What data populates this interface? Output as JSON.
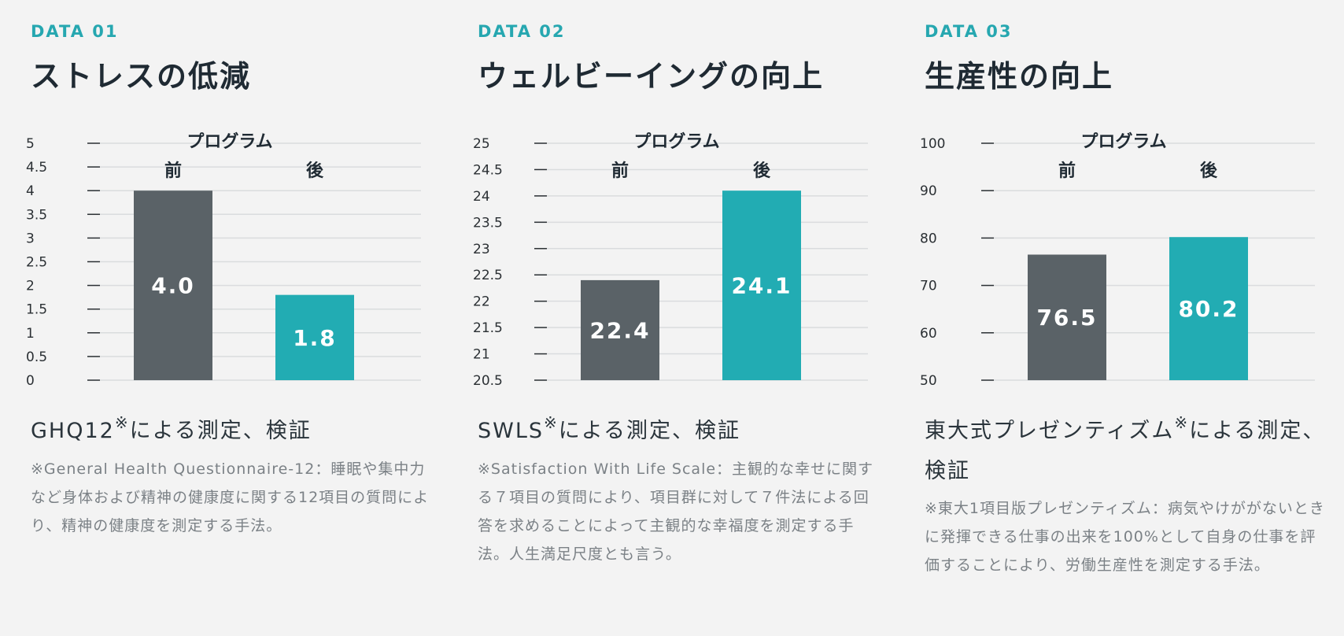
{
  "colors": {
    "before": "#5a6267",
    "after": "#22acb3",
    "accent": "#26a7b0"
  },
  "panels": [
    {
      "tag": "DATA 01",
      "title": "ストレスの低減",
      "method": "GHQ12",
      "method_suffix": "による測定、検証",
      "note": "※General Health Questionnaire-12：睡眠や集中力など身体および精神の健康度に関する12項目の質問により、精神の健康度を測定する手法。"
    },
    {
      "tag": "DATA 02",
      "title": "ウェルビーイングの向上",
      "method": "SWLS",
      "method_suffix": "による測定、検証",
      "note": "※Satisfaction With Life Scale：主観的な幸せに関する７項目の質問により、項目群に対して７件法による回答を求めることによって主観的な幸福度を測定する手法。人生満足尺度とも言う。"
    },
    {
      "tag": "DATA 03",
      "title": "生産性の向上",
      "method": "東大式プレゼンティズム",
      "method_suffix": "による測定、検証",
      "note": "※東大1項目版プレゼンティズム：病気やけががないときに発揮できる仕事の出来を100%として自身の仕事を評価することにより、労働生産性を測定する手法。"
    }
  ],
  "chart_data": [
    {
      "type": "bar",
      "title": "プログラム",
      "categories": [
        "前",
        "後"
      ],
      "values": [
        4.0,
        1.8
      ],
      "value_labels": [
        "4.0",
        "1.8"
      ],
      "ylim": [
        0,
        5
      ],
      "yticks": [
        0,
        0.5,
        1,
        1.5,
        2,
        2.5,
        3,
        3.5,
        4,
        4.5,
        5
      ],
      "ytick_labels": [
        "0",
        "0.5",
        "1",
        "1.5",
        "2",
        "2.5",
        "3",
        "3.5",
        "4",
        "4.5",
        "5"
      ],
      "xlabel": "",
      "ylabel": ""
    },
    {
      "type": "bar",
      "title": "プログラム",
      "categories": [
        "前",
        "後"
      ],
      "values": [
        22.4,
        24.1
      ],
      "value_labels": [
        "22.4",
        "24.1"
      ],
      "ylim": [
        20.5,
        25
      ],
      "yticks": [
        20.5,
        21,
        21.5,
        22,
        22.5,
        23,
        23.5,
        24,
        24.5,
        25
      ],
      "ytick_labels": [
        "20.5",
        "21",
        "21.5",
        "22",
        "22.5",
        "23",
        "23.5",
        "24",
        "24.5",
        "25"
      ],
      "xlabel": "",
      "ylabel": ""
    },
    {
      "type": "bar",
      "title": "プログラム",
      "categories": [
        "前",
        "後"
      ],
      "values": [
        76.5,
        80.2
      ],
      "value_labels": [
        "76.5",
        "80.2"
      ],
      "ylim": [
        50,
        100
      ],
      "yticks": [
        50,
        60,
        70,
        80,
        90,
        100
      ],
      "ytick_labels": [
        "50",
        "60",
        "70",
        "80",
        "90",
        "100"
      ],
      "xlabel": "",
      "ylabel": ""
    }
  ]
}
